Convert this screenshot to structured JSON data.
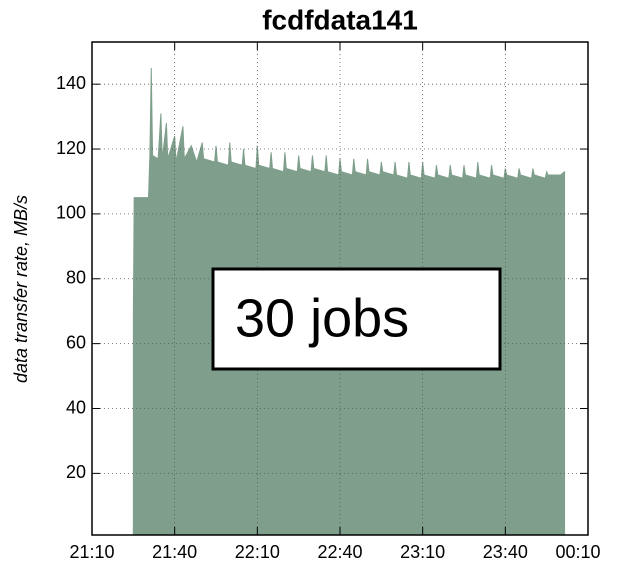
{
  "chart_data": {
    "type": "area",
    "title": "fcdfdata141",
    "ylabel": "data transfer rate, MB/s",
    "annotation": "30 jobs",
    "color": "#7f9f8c",
    "grid": true,
    "xlim": [
      1270,
      1450
    ],
    "ylim": [
      1,
      153
    ],
    "xticks": [
      {
        "value": 1270,
        "label": "21:10"
      },
      {
        "value": 1300,
        "label": "21:40"
      },
      {
        "value": 1330,
        "label": "22:10"
      },
      {
        "value": 1360,
        "label": "22:40"
      },
      {
        "value": 1390,
        "label": "23:10"
      },
      {
        "value": 1420,
        "label": "23:40"
      },
      {
        "value": 1450,
        "label": "00:10"
      }
    ],
    "yticks": [
      20,
      40,
      60,
      80,
      100,
      120,
      140
    ],
    "x": [
      1285,
      1285.3,
      1290.5,
      1291,
      1291.5,
      1292,
      1294,
      1295,
      1295.5,
      1297,
      1297.5,
      1300,
      1300.5,
      1303,
      1303.5,
      1306,
      1308,
      1310,
      1310.5,
      1314.5,
      1315,
      1315.5,
      1319.5,
      1320,
      1320.5,
      1324.5,
      1325,
      1325.5,
      1329.5,
      1330,
      1330.5,
      1334.5,
      1335,
      1335.5,
      1339.5,
      1340,
      1340.5,
      1344.5,
      1345,
      1345.5,
      1349.5,
      1350,
      1350.5,
      1354.5,
      1355,
      1355.5,
      1359.5,
      1360,
      1360.5,
      1364.5,
      1365,
      1365.5,
      1369.5,
      1370,
      1370.5,
      1374.5,
      1375,
      1375.5,
      1379.5,
      1380,
      1380.5,
      1384.5,
      1385,
      1385.5,
      1389.5,
      1390,
      1390.5,
      1394.5,
      1395,
      1395.5,
      1399.5,
      1400,
      1400.5,
      1404.5,
      1405,
      1405.5,
      1409.5,
      1410,
      1410.5,
      1414.5,
      1415,
      1415.5,
      1419.5,
      1420,
      1420.5,
      1424.5,
      1425,
      1425.5,
      1429.5,
      1430,
      1430.5,
      1434.5,
      1435,
      1435.5,
      1440,
      1441.5
    ],
    "values": [
      68,
      105,
      105,
      118,
      145,
      118,
      117,
      131,
      117,
      128,
      117,
      124,
      116,
      127,
      117,
      121,
      116,
      122,
      117,
      116,
      121,
      116,
      115,
      122,
      116,
      115,
      120,
      115,
      114,
      121,
      115,
      114,
      119,
      114,
      113,
      119,
      114,
      113,
      118,
      114,
      113,
      118,
      114,
      113,
      118,
      113,
      112,
      117,
      113,
      112,
      117,
      113,
      112,
      117,
      113,
      112,
      116,
      113,
      112,
      116,
      112,
      111,
      116,
      112,
      111,
      116,
      112,
      111,
      115,
      112,
      111,
      115,
      112,
      111,
      115,
      112,
      111,
      116,
      112,
      111,
      115,
      112,
      111,
      114,
      112,
      111,
      114,
      112,
      111,
      114,
      112,
      111,
      113,
      112,
      112,
      113
    ]
  }
}
